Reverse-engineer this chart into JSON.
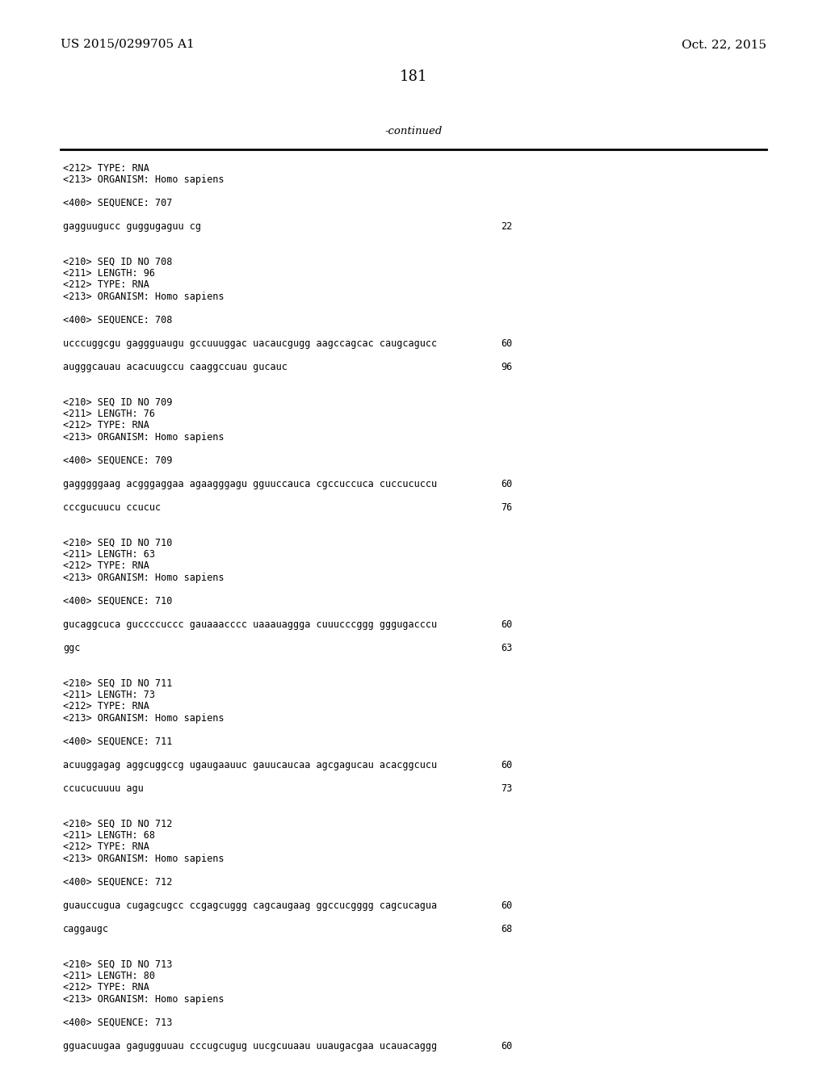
{
  "header_left": "US 2015/0299705 A1",
  "header_right": "Oct. 22, 2015",
  "page_number": "181",
  "continued_text": "-continued",
  "background_color": "#ffffff",
  "text_color": "#000000",
  "mono_size": 8.5,
  "header_size": 11,
  "page_num_size": 13,
  "continued_size": 9.5,
  "content_lines": [
    {
      "text": "<212> TYPE: RNA",
      "type": "meta",
      "num": null
    },
    {
      "text": "<213> ORGANISM: Homo sapiens",
      "type": "meta",
      "num": null
    },
    {
      "text": "",
      "type": "blank"
    },
    {
      "text": "<400> SEQUENCE: 707",
      "type": "meta400",
      "num": null
    },
    {
      "text": "",
      "type": "blank"
    },
    {
      "text": "gagguugucc guggugaguu cg",
      "type": "seq",
      "num": "22"
    },
    {
      "text": "",
      "type": "blank"
    },
    {
      "text": "",
      "type": "blank"
    },
    {
      "text": "<210> SEQ ID NO 708",
      "type": "meta",
      "num": null
    },
    {
      "text": "<211> LENGTH: 96",
      "type": "meta",
      "num": null
    },
    {
      "text": "<212> TYPE: RNA",
      "type": "meta",
      "num": null
    },
    {
      "text": "<213> ORGANISM: Homo sapiens",
      "type": "meta",
      "num": null
    },
    {
      "text": "",
      "type": "blank"
    },
    {
      "text": "<400> SEQUENCE: 708",
      "type": "meta400",
      "num": null
    },
    {
      "text": "",
      "type": "blank"
    },
    {
      "text": "ucccuggcgu gaggguaugu gccuuuggac uacaucgugg aagccagcac caugcagucc",
      "type": "seq",
      "num": "60"
    },
    {
      "text": "",
      "type": "blank"
    },
    {
      "text": "augggcauau acacuugccu caaggccuau gucauc",
      "type": "seq",
      "num": "96"
    },
    {
      "text": "",
      "type": "blank"
    },
    {
      "text": "",
      "type": "blank"
    },
    {
      "text": "<210> SEQ ID NO 709",
      "type": "meta",
      "num": null
    },
    {
      "text": "<211> LENGTH: 76",
      "type": "meta",
      "num": null
    },
    {
      "text": "<212> TYPE: RNA",
      "type": "meta",
      "num": null
    },
    {
      "text": "<213> ORGANISM: Homo sapiens",
      "type": "meta",
      "num": null
    },
    {
      "text": "",
      "type": "blank"
    },
    {
      "text": "<400> SEQUENCE: 709",
      "type": "meta400",
      "num": null
    },
    {
      "text": "",
      "type": "blank"
    },
    {
      "text": "gagggggaag acgggaggaa agaagggagu gguuccauca cgccuccuca cuccucuccu",
      "type": "seq",
      "num": "60"
    },
    {
      "text": "",
      "type": "blank"
    },
    {
      "text": "cccgucuucu ccucuc",
      "type": "seq",
      "num": "76"
    },
    {
      "text": "",
      "type": "blank"
    },
    {
      "text": "",
      "type": "blank"
    },
    {
      "text": "<210> SEQ ID NO 710",
      "type": "meta",
      "num": null
    },
    {
      "text": "<211> LENGTH: 63",
      "type": "meta",
      "num": null
    },
    {
      "text": "<212> TYPE: RNA",
      "type": "meta",
      "num": null
    },
    {
      "text": "<213> ORGANISM: Homo sapiens",
      "type": "meta",
      "num": null
    },
    {
      "text": "",
      "type": "blank"
    },
    {
      "text": "<400> SEQUENCE: 710",
      "type": "meta400",
      "num": null
    },
    {
      "text": "",
      "type": "blank"
    },
    {
      "text": "gucaggcuca guccccuccc gauaaacccc uaaauaggga cuuucccggg gggugacccu",
      "type": "seq",
      "num": "60"
    },
    {
      "text": "",
      "type": "blank"
    },
    {
      "text": "ggc",
      "type": "seq",
      "num": "63"
    },
    {
      "text": "",
      "type": "blank"
    },
    {
      "text": "",
      "type": "blank"
    },
    {
      "text": "<210> SEQ ID NO 711",
      "type": "meta",
      "num": null
    },
    {
      "text": "<211> LENGTH: 73",
      "type": "meta",
      "num": null
    },
    {
      "text": "<212> TYPE: RNA",
      "type": "meta",
      "num": null
    },
    {
      "text": "<213> ORGANISM: Homo sapiens",
      "type": "meta",
      "num": null
    },
    {
      "text": "",
      "type": "blank"
    },
    {
      "text": "<400> SEQUENCE: 711",
      "type": "meta400",
      "num": null
    },
    {
      "text": "",
      "type": "blank"
    },
    {
      "text": "acuuggagag aggcuggccg ugaugaauuc gauucaucaa agcgagucau acacggcucu",
      "type": "seq",
      "num": "60"
    },
    {
      "text": "",
      "type": "blank"
    },
    {
      "text": "ccucucuuuu agu",
      "type": "seq",
      "num": "73"
    },
    {
      "text": "",
      "type": "blank"
    },
    {
      "text": "",
      "type": "blank"
    },
    {
      "text": "<210> SEQ ID NO 712",
      "type": "meta",
      "num": null
    },
    {
      "text": "<211> LENGTH: 68",
      "type": "meta",
      "num": null
    },
    {
      "text": "<212> TYPE: RNA",
      "type": "meta",
      "num": null
    },
    {
      "text": "<213> ORGANISM: Homo sapiens",
      "type": "meta",
      "num": null
    },
    {
      "text": "",
      "type": "blank"
    },
    {
      "text": "<400> SEQUENCE: 712",
      "type": "meta400",
      "num": null
    },
    {
      "text": "",
      "type": "blank"
    },
    {
      "text": "guauccugua cugagcugcc ccgagcuggg cagcaugaag ggccucgggg cagcucagua",
      "type": "seq",
      "num": "60"
    },
    {
      "text": "",
      "type": "blank"
    },
    {
      "text": "caggaugc",
      "type": "seq",
      "num": "68"
    },
    {
      "text": "",
      "type": "blank"
    },
    {
      "text": "",
      "type": "blank"
    },
    {
      "text": "<210> SEQ ID NO 713",
      "type": "meta",
      "num": null
    },
    {
      "text": "<211> LENGTH: 80",
      "type": "meta",
      "num": null
    },
    {
      "text": "<212> TYPE: RNA",
      "type": "meta",
      "num": null
    },
    {
      "text": "<213> ORGANISM: Homo sapiens",
      "type": "meta",
      "num": null
    },
    {
      "text": "",
      "type": "blank"
    },
    {
      "text": "<400> SEQUENCE: 713",
      "type": "meta400",
      "num": null
    },
    {
      "text": "",
      "type": "blank"
    },
    {
      "text": "gguacuugaa gagugguuau cccugcugug uucgcuuaau uuaugacgaa ucauacaggg",
      "type": "seq",
      "num": "60"
    }
  ]
}
